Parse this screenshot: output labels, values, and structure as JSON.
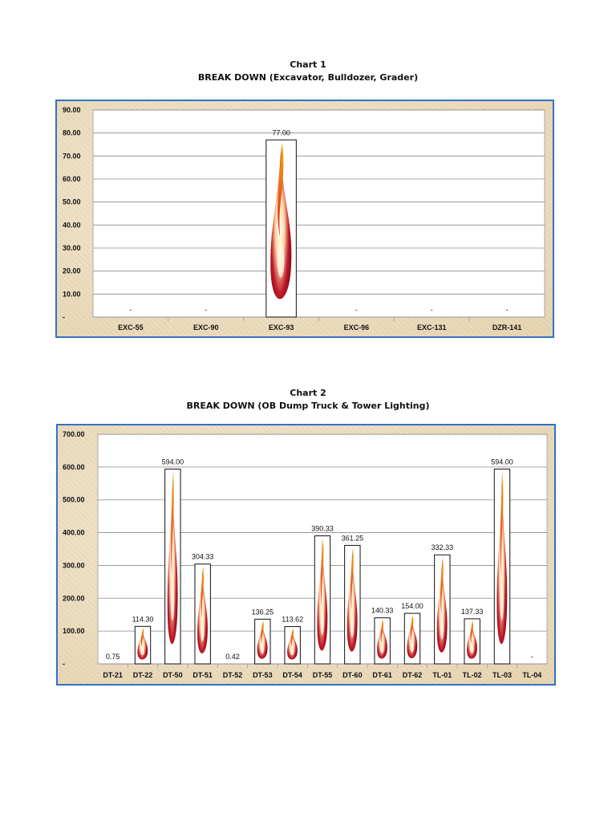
{
  "chart_data": [
    {
      "type": "bar",
      "title": "Chart 1",
      "subtitle": "BREAK DOWN (Excavator, Bulldozer, Grader)",
      "categories": [
        "EXC-55",
        "EXC-90",
        "EXC-93",
        "EXC-96",
        "EXC-131",
        "DZR-141"
      ],
      "values": [
        0,
        0,
        77.0,
        0,
        0,
        0
      ],
      "data_labels": [
        "-",
        "-",
        "77.00",
        "-",
        "-",
        "-"
      ],
      "ylim": [
        0,
        90
      ],
      "yticks": [
        "-",
        "10.00",
        "20.00",
        "30.00",
        "40.00",
        "50.00",
        "60.00",
        "70.00",
        "80.00",
        "90.00"
      ],
      "ytick_values": [
        0,
        10,
        20,
        30,
        40,
        50,
        60,
        70,
        80,
        90
      ],
      "xlabel": "",
      "ylabel": "",
      "grid": true,
      "legend": "none"
    },
    {
      "type": "bar",
      "title": "Chart 2",
      "subtitle": "BREAK DOWN (OB Dump Truck & Tower Lighting)",
      "categories": [
        "DT-21",
        "DT-22",
        "DT-50",
        "DT-51",
        "DT-52",
        "DT-53",
        "DT-54",
        "DT-55",
        "DT-60",
        "DT-61",
        "DT-62",
        "TL-01",
        "TL-02",
        "TL-03",
        "TL-04"
      ],
      "values": [
        0.75,
        114.3,
        594.0,
        304.33,
        0.42,
        136.25,
        113.62,
        390.33,
        361.25,
        140.33,
        154.0,
        332.33,
        137.33,
        594.0,
        0
      ],
      "data_labels": [
        "0.75",
        "114.30",
        "594.00",
        "304.33",
        "0.42",
        "136.25",
        "113.62",
        "390.33",
        "361.25",
        "140.33",
        "154.00",
        "332.33",
        "137.33",
        "594.00",
        "-"
      ],
      "ylim": [
        0,
        700
      ],
      "yticks": [
        "-",
        "100.00",
        "200.00",
        "300.00",
        "400.00",
        "500.00",
        "600.00",
        "700.00"
      ],
      "ytick_values": [
        0,
        100,
        200,
        300,
        400,
        500,
        600,
        700
      ],
      "xlabel": "",
      "ylabel": "",
      "grid": true,
      "legend": "none"
    }
  ],
  "colors": {
    "panel_border": "#2f74c4",
    "gridline": "#8a8a8a",
    "flame_outer": "#c0182a",
    "flame_mid": "#e8461e",
    "flame_yellow": "#f4b400"
  }
}
